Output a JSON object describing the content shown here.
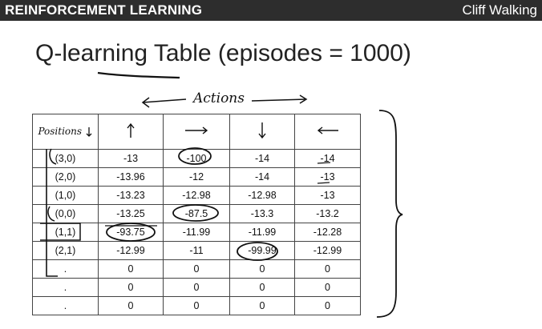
{
  "header": {
    "left_title": "REINFORCEMENT LEARNING",
    "right_title": "Cliff Walking"
  },
  "slide": {
    "title": "Q-learning Table (episodes = 1000)",
    "actions_label": "Actions"
  },
  "table": {
    "position_header": "Positions",
    "action_icons": [
      "arrow-up-icon",
      "arrow-right-icon",
      "arrow-down-icon",
      "arrow-left-icon"
    ],
    "rows": [
      {
        "position": "(3,0)",
        "values": [
          "-13",
          "-100",
          "-14",
          "-14"
        ]
      },
      {
        "position": "(2,0)",
        "values": [
          "-13.96",
          "-12",
          "-14",
          "-13"
        ]
      },
      {
        "position": "(1,0)",
        "values": [
          "-13.23",
          "-12.98",
          "-12.98",
          "-13"
        ]
      },
      {
        "position": "(0,0)",
        "values": [
          "-13.25",
          "-87.5",
          "-13.3",
          "-13.2"
        ]
      },
      {
        "position": "(1,1)",
        "values": [
          "-93.75",
          "-11.99",
          "-11.99",
          "-12.28"
        ]
      },
      {
        "position": "(2,1)",
        "values": [
          "-12.99",
          "-11",
          "-99.99",
          "-12.99"
        ]
      },
      {
        "position": ".",
        "values": [
          "0",
          "0",
          "0",
          "0"
        ]
      },
      {
        "position": ".",
        "values": [
          "0",
          "0",
          "0",
          "0"
        ]
      },
      {
        "position": ".",
        "values": [
          "0",
          "0",
          "0",
          "0"
        ]
      }
    ]
  }
}
